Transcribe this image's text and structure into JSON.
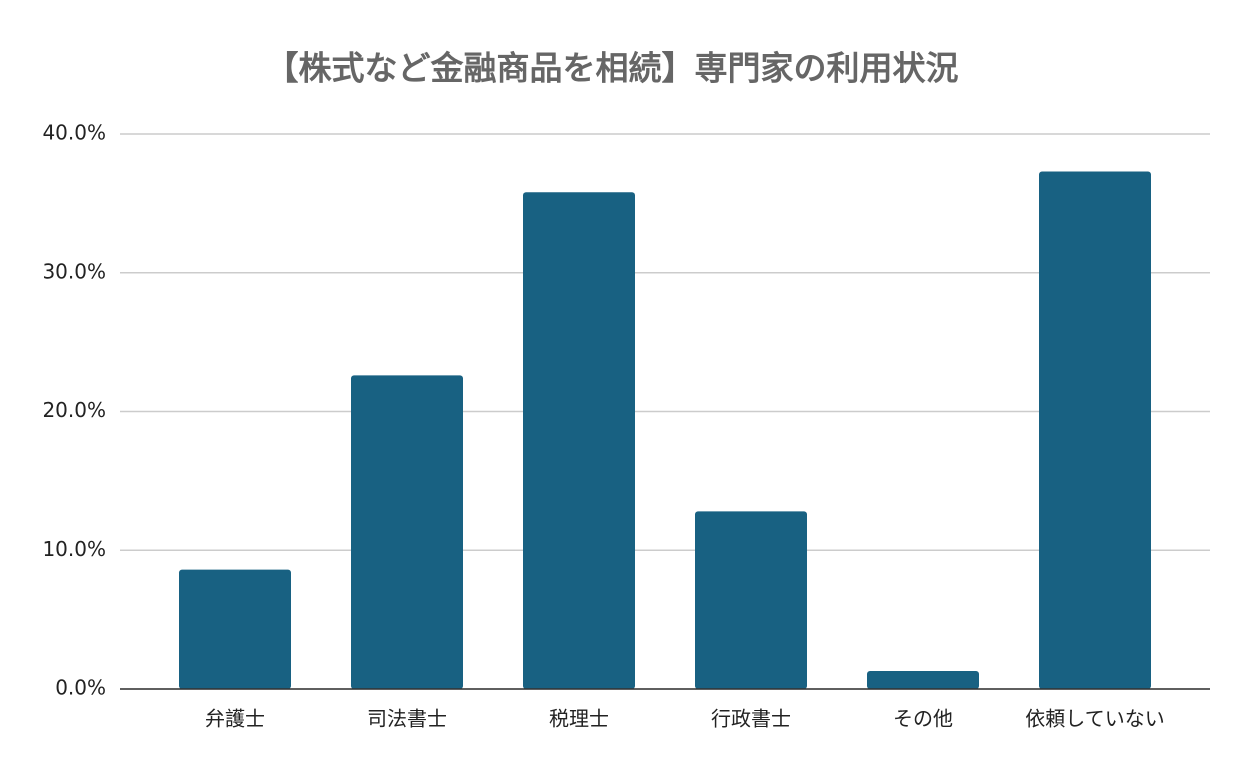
{
  "chart_data": {
    "type": "bar",
    "title": "【株式など金融商品を相続】専門家の利用状況",
    "categories": [
      "弁護士",
      "司法書士",
      "税理士",
      "行政書士",
      "その他",
      "依頼していない"
    ],
    "values": [
      8.6,
      22.6,
      35.8,
      12.8,
      1.3,
      37.3
    ],
    "color": "#186182",
    "ylim": [
      0,
      40
    ],
    "yticks": [
      {
        "value": 0,
        "label": "0.0%"
      },
      {
        "value": 10,
        "label": "10.0%"
      },
      {
        "value": 20,
        "label": "20.0%"
      },
      {
        "value": 30,
        "label": "30.0%"
      },
      {
        "value": 40,
        "label": "40.0%"
      }
    ],
    "grid": true
  }
}
